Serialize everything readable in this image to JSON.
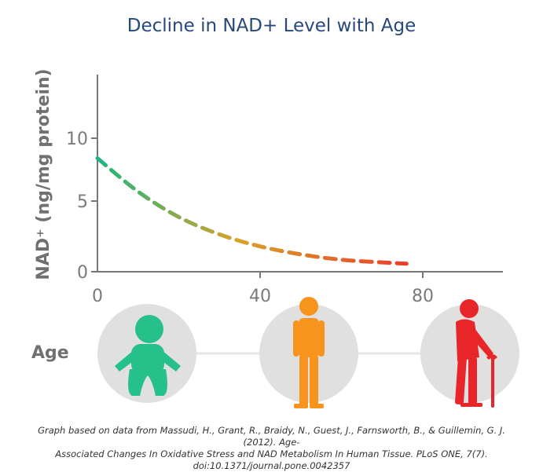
{
  "title": "Decline in NAD+ Level with Age",
  "age_label": "Age",
  "citation": {
    "line1": "Graph based on data from Massudi, H., Grant, R., Braidy, N., Guest, J., Farnsworth, B., & Guillemin, G. J. (2012). Age-",
    "line2": "Associated Changes In Oxidative Stress and NAD Metabolism In Human Tissue. PLoS ONE, 7(7).",
    "line3": "doi:10.1371/journal.pone.0042357"
  },
  "colors": {
    "title": "#27487a",
    "baby": "#26c08a",
    "adult": "#f7941d",
    "elder": "#e8262a",
    "circle": "#e0e0e0",
    "line_start": "#20b580",
    "line_mid": "#d6a32a",
    "line_end": "#ee3b2b"
  },
  "figures": [
    {
      "icon": "baby-icon",
      "age": 0
    },
    {
      "icon": "adult-icon",
      "age": 40
    },
    {
      "icon": "elder-with-cane-icon",
      "age": 80
    }
  ],
  "chart_data": {
    "type": "line",
    "title": "Decline in NAD+ Level with Age",
    "xlabel": "Age",
    "ylabel": "NAD⁺ (ng/mg protein)",
    "xlim": [
      0,
      100
    ],
    "ylim": [
      0,
      15
    ],
    "xticks": [
      0,
      40,
      80
    ],
    "yticks": [
      0,
      5,
      10
    ],
    "grid": false,
    "series": [
      {
        "name": "NAD+ level",
        "style": "dashed",
        "x": [
          0,
          10,
          20,
          30,
          40,
          50,
          60,
          70,
          76
        ],
        "y": [
          8.5,
          6.0,
          4.1,
          2.8,
          1.9,
          1.3,
          0.9,
          0.7,
          0.6
        ]
      }
    ]
  }
}
